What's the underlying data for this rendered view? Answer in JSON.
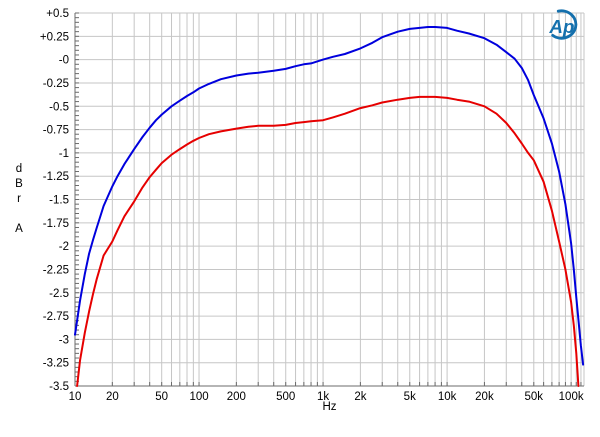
{
  "logo": {
    "text": "Ap",
    "color": "#1470ad",
    "name": "Audio Precision logo"
  },
  "chart_data": {
    "type": "line",
    "title": "",
    "xlabel": "Hz",
    "ylabel": "dBr A",
    "ylabel_letters": [
      "d",
      "B",
      "r",
      "",
      "A"
    ],
    "x_scale": "log",
    "xlim": [
      10,
      127000
    ],
    "ylim": [
      -3.5,
      0.5
    ],
    "y_major_step": 0.25,
    "y_minor_step": 0.05,
    "grid": true,
    "legend": "none",
    "grid_color": "#c6c6c6",
    "axis_color": "#6b6b6b",
    "tick_color": "#6b6b6b",
    "label_color": "#000000",
    "x_tick_labels": [
      [
        10,
        "10"
      ],
      [
        20,
        "20"
      ],
      [
        50,
        "50"
      ],
      [
        100,
        "100"
      ],
      [
        200,
        "200"
      ],
      [
        500,
        "500"
      ],
      [
        1000,
        "1k"
      ],
      [
        2000,
        "2k"
      ],
      [
        5000,
        "5k"
      ],
      [
        10000,
        "10k"
      ],
      [
        20000,
        "20k"
      ],
      [
        50000,
        "50k"
      ],
      [
        100000,
        "100k"
      ]
    ],
    "x_extra_gridlines": [
      110000,
      120000
    ],
    "y_tick_labels": [
      [
        0.5,
        "+0.5"
      ],
      [
        0.25,
        "+0.25"
      ],
      [
        0,
        "-0"
      ],
      [
        -0.25,
        "-0.25"
      ],
      [
        -0.5,
        "-0.5"
      ],
      [
        -0.75,
        "-0.75"
      ],
      [
        -1,
        "-1"
      ],
      [
        -1.25,
        "-1.25"
      ],
      [
        -1.5,
        "-1.5"
      ],
      [
        -1.75,
        "-1.75"
      ],
      [
        -2,
        "-2"
      ],
      [
        -2.25,
        "-2.25"
      ],
      [
        -2.5,
        "-2.5"
      ],
      [
        -2.75,
        "-2.75"
      ],
      [
        -3,
        "-3"
      ],
      [
        -3.25,
        "-3.25"
      ],
      [
        -3.5,
        "-3.5"
      ]
    ],
    "series": [
      {
        "name": "blue-trace",
        "color": "#0000dd",
        "points": [
          [
            10,
            -2.95
          ],
          [
            11,
            -2.58
          ],
          [
            12,
            -2.3
          ],
          [
            13,
            -2.08
          ],
          [
            14,
            -1.93
          ],
          [
            15,
            -1.8
          ],
          [
            17,
            -1.57
          ],
          [
            20,
            -1.36
          ],
          [
            22,
            -1.25
          ],
          [
            25,
            -1.12
          ],
          [
            30,
            -0.96
          ],
          [
            35,
            -0.83
          ],
          [
            40,
            -0.73
          ],
          [
            45,
            -0.65
          ],
          [
            50,
            -0.59
          ],
          [
            60,
            -0.5
          ],
          [
            70,
            -0.44
          ],
          [
            80,
            -0.39
          ],
          [
            90,
            -0.35
          ],
          [
            100,
            -0.31
          ],
          [
            120,
            -0.26
          ],
          [
            150,
            -0.21
          ],
          [
            200,
            -0.17
          ],
          [
            250,
            -0.15
          ],
          [
            300,
            -0.14
          ],
          [
            400,
            -0.12
          ],
          [
            500,
            -0.1
          ],
          [
            600,
            -0.07
          ],
          [
            700,
            -0.05
          ],
          [
            800,
            -0.04
          ],
          [
            1000,
            0
          ],
          [
            1200,
            0.03
          ],
          [
            1500,
            0.06
          ],
          [
            2000,
            0.12
          ],
          [
            2500,
            0.18
          ],
          [
            3000,
            0.24
          ],
          [
            4000,
            0.3
          ],
          [
            5000,
            0.33
          ],
          [
            6000,
            0.34
          ],
          [
            7000,
            0.35
          ],
          [
            8000,
            0.35
          ],
          [
            10000,
            0.34
          ],
          [
            12000,
            0.31
          ],
          [
            15000,
            0.28
          ],
          [
            20000,
            0.23
          ],
          [
            25000,
            0.16
          ],
          [
            30000,
            0.08
          ],
          [
            35000,
            0.01
          ],
          [
            40000,
            -0.09
          ],
          [
            45000,
            -0.22
          ],
          [
            50000,
            -0.38
          ],
          [
            60000,
            -0.63
          ],
          [
            70000,
            -0.9
          ],
          [
            80000,
            -1.2
          ],
          [
            90000,
            -1.55
          ],
          [
            100000,
            -1.97
          ],
          [
            105000,
            -2.25
          ],
          [
            110000,
            -2.55
          ],
          [
            115000,
            -2.82
          ],
          [
            120000,
            -3.07
          ],
          [
            125000,
            -3.27
          ]
        ]
      },
      {
        "name": "red-trace",
        "color": "#e60000",
        "points": [
          [
            10.4,
            -3.5
          ],
          [
            11,
            -3.22
          ],
          [
            12,
            -2.93
          ],
          [
            13,
            -2.7
          ],
          [
            14,
            -2.51
          ],
          [
            15,
            -2.35
          ],
          [
            17,
            -2.1
          ],
          [
            20,
            -1.95
          ],
          [
            22,
            -1.83
          ],
          [
            25,
            -1.68
          ],
          [
            30,
            -1.52
          ],
          [
            35,
            -1.37
          ],
          [
            40,
            -1.26
          ],
          [
            45,
            -1.18
          ],
          [
            50,
            -1.11
          ],
          [
            60,
            -1.02
          ],
          [
            70,
            -0.96
          ],
          [
            80,
            -0.91
          ],
          [
            90,
            -0.87
          ],
          [
            100,
            -0.84
          ],
          [
            120,
            -0.8
          ],
          [
            150,
            -0.77
          ],
          [
            200,
            -0.74
          ],
          [
            250,
            -0.72
          ],
          [
            300,
            -0.71
          ],
          [
            400,
            -0.71
          ],
          [
            500,
            -0.7
          ],
          [
            600,
            -0.68
          ],
          [
            700,
            -0.67
          ],
          [
            800,
            -0.66
          ],
          [
            1000,
            -0.65
          ],
          [
            1200,
            -0.62
          ],
          [
            1500,
            -0.58
          ],
          [
            2000,
            -0.52
          ],
          [
            2500,
            -0.49
          ],
          [
            3000,
            -0.46
          ],
          [
            4000,
            -0.43
          ],
          [
            5000,
            -0.41
          ],
          [
            6000,
            -0.4
          ],
          [
            7000,
            -0.4
          ],
          [
            8000,
            -0.4
          ],
          [
            10000,
            -0.41
          ],
          [
            12000,
            -0.43
          ],
          [
            15000,
            -0.45
          ],
          [
            20000,
            -0.5
          ],
          [
            25000,
            -0.58
          ],
          [
            30000,
            -0.68
          ],
          [
            35000,
            -0.79
          ],
          [
            40000,
            -0.9
          ],
          [
            45000,
            -1
          ],
          [
            50000,
            -1.08
          ],
          [
            60000,
            -1.31
          ],
          [
            70000,
            -1.62
          ],
          [
            80000,
            -1.95
          ],
          [
            90000,
            -2.25
          ],
          [
            100000,
            -2.6
          ],
          [
            105000,
            -2.85
          ],
          [
            110000,
            -3.15
          ],
          [
            113000,
            -3.38
          ],
          [
            114500,
            -3.5
          ]
        ]
      }
    ]
  }
}
